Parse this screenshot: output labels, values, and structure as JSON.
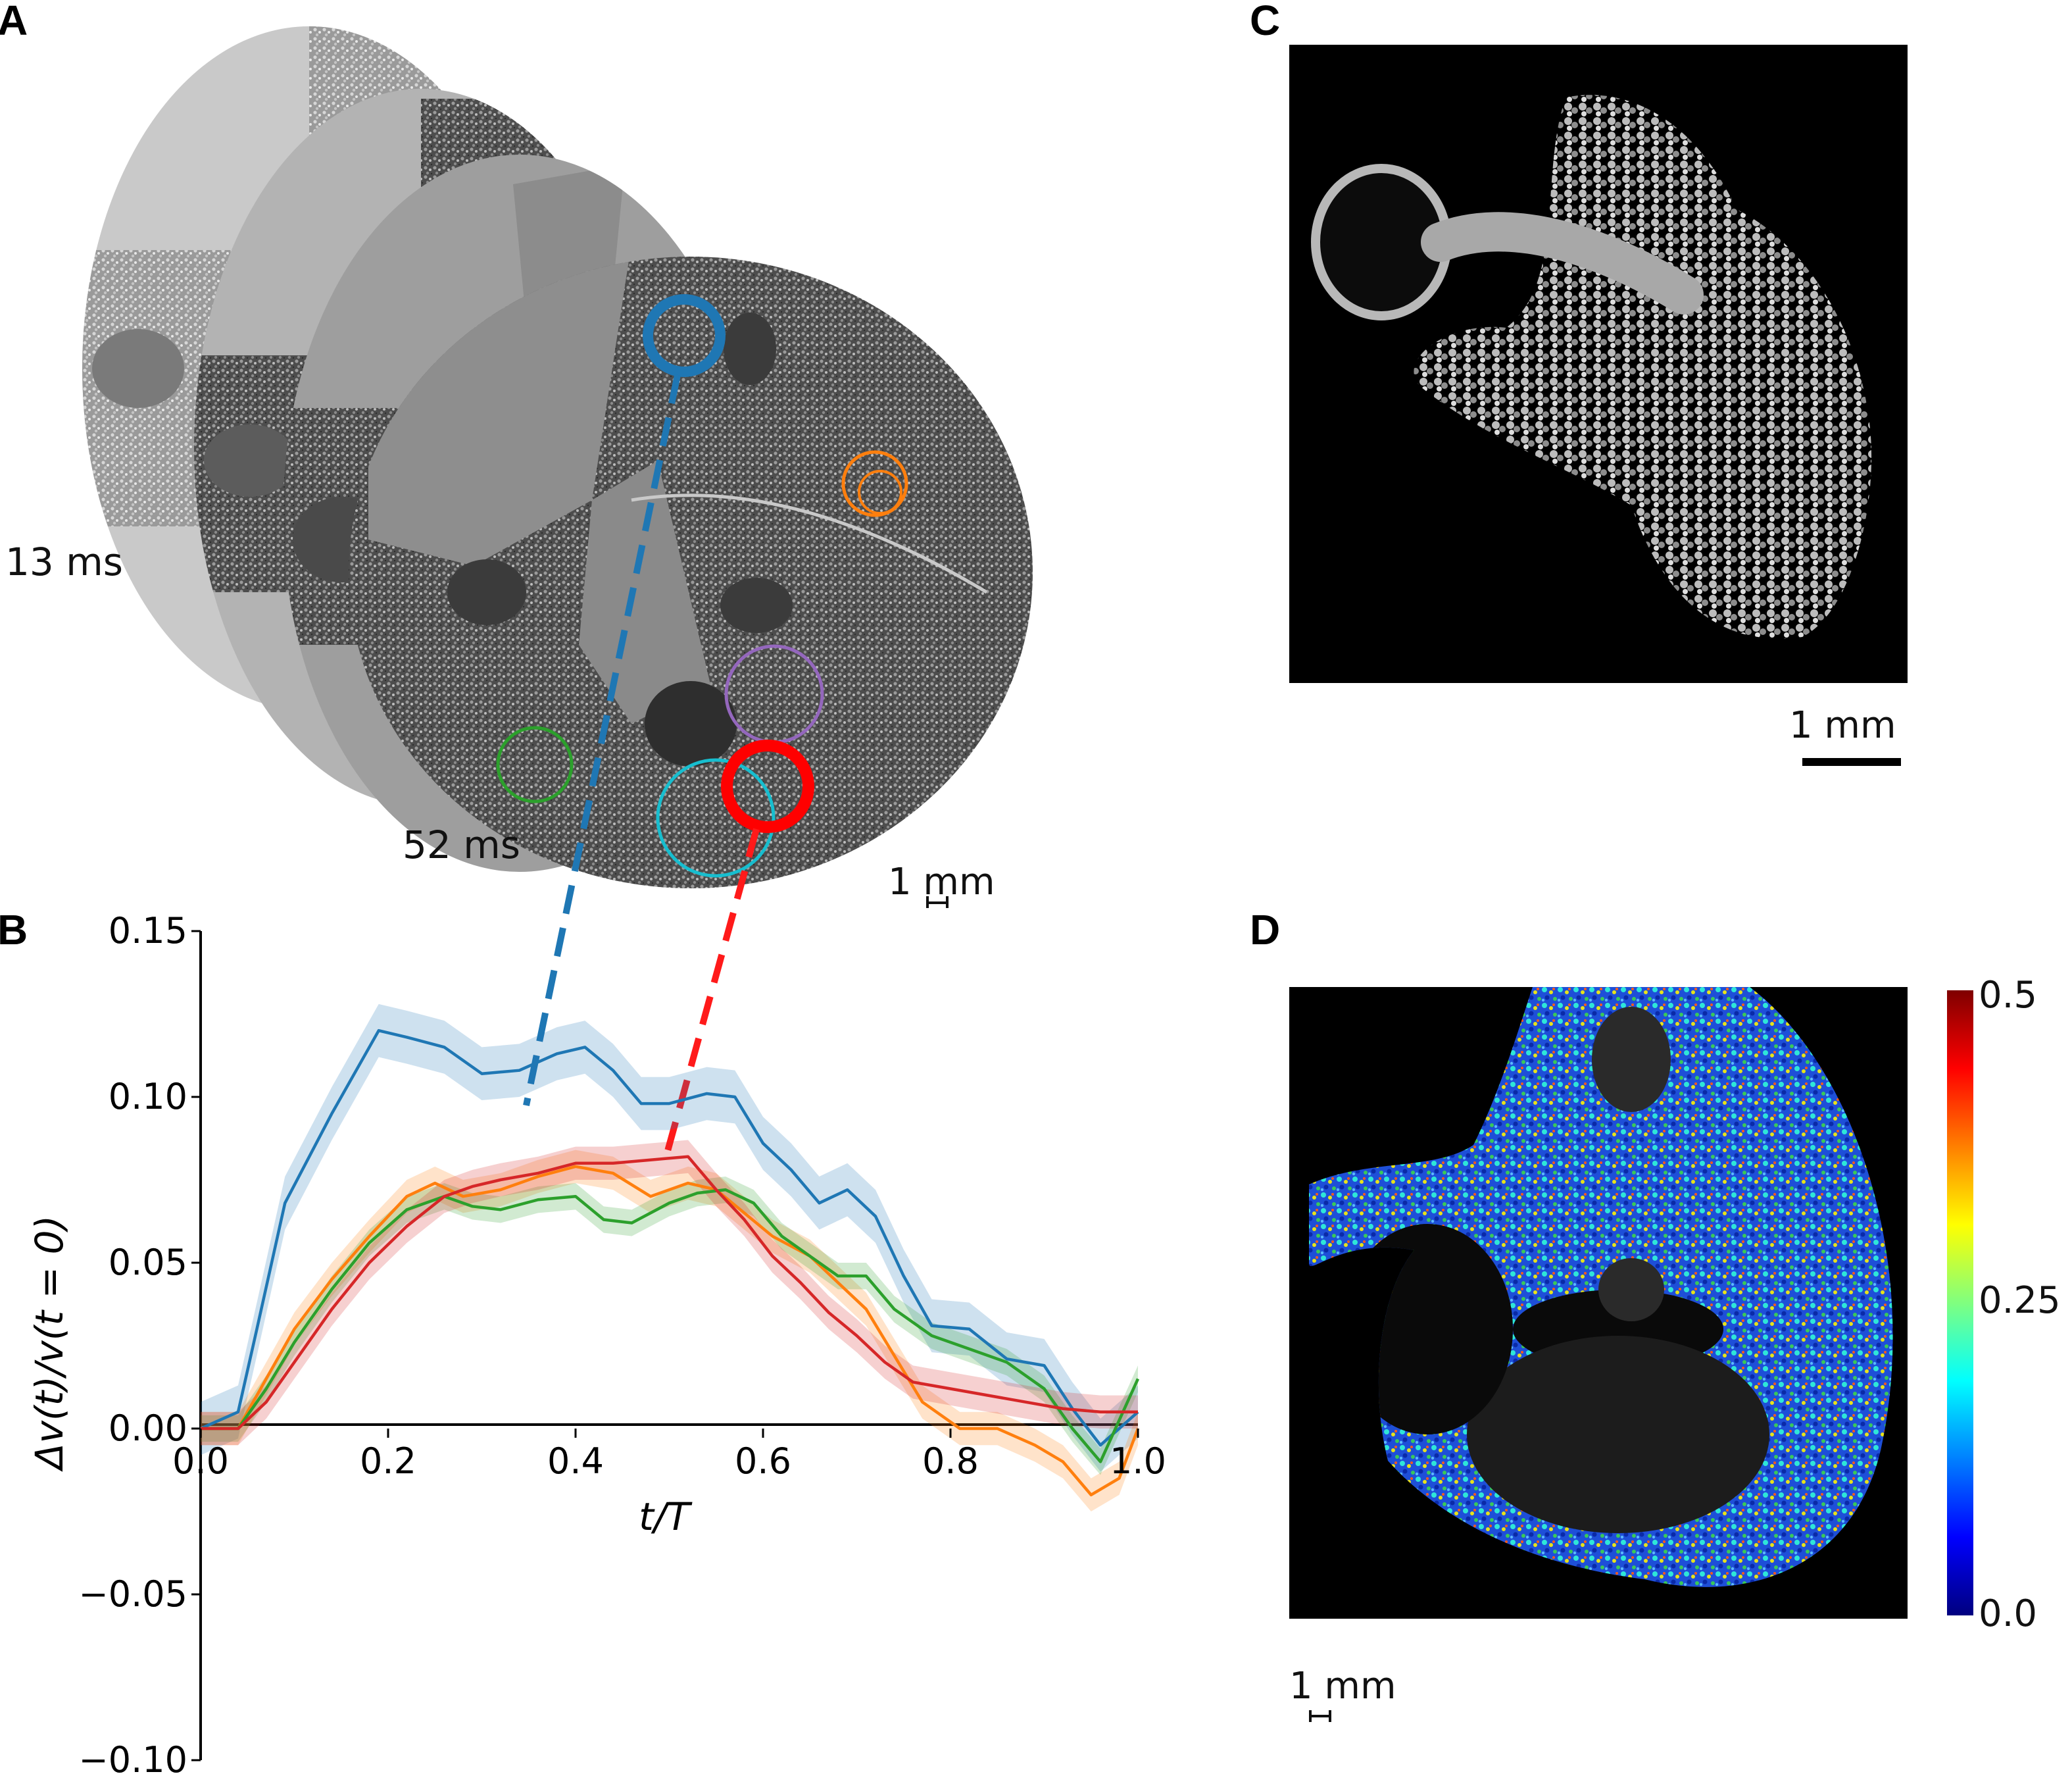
{
  "panels": {
    "a": {
      "letter": "A",
      "frame_first": "13 ms",
      "frame_last": "52 ms",
      "scale_bar": "1 mm"
    },
    "b": {
      "letter": "B"
    },
    "c": {
      "letter": "C",
      "scale_bar": "1 mm"
    },
    "d": {
      "letter": "D",
      "scale_bar": "1 mm",
      "colorbar": {
        "max": "0.5",
        "mid": "0.25",
        "min": "0.0",
        "colormap": "jet"
      }
    }
  },
  "roi_colors": {
    "blue": "#1f77b4",
    "orange": "#ff7f0e",
    "green": "#2ca02c",
    "red": "#d62728",
    "purple": "#9467bd",
    "cyan": "#17becf"
  },
  "chart_data": {
    "type": "line",
    "title": "",
    "xlabel": "t/T",
    "ylabel": "Δv(t)/v(t = 0)",
    "xlim": [
      0.0,
      1.0
    ],
    "ylim": [
      -0.1,
      0.15
    ],
    "x_ticks": [
      "0.0",
      "0.2",
      "0.4",
      "0.6",
      "0.8",
      "1.0"
    ],
    "y_ticks": [
      "0.15",
      "0.10",
      "0.05",
      "0.00",
      "−0.05",
      "−0.10"
    ],
    "grid": false,
    "series": [
      {
        "color": "#1f77b4",
        "band": 0.008,
        "x": [
          0.0,
          0.04,
          0.06,
          0.09,
          0.14,
          0.19,
          0.22,
          0.26,
          0.3,
          0.34,
          0.38,
          0.41,
          0.44,
          0.47,
          0.5,
          0.54,
          0.57,
          0.6,
          0.63,
          0.66,
          0.69,
          0.72,
          0.75,
          0.78,
          0.82,
          0.86,
          0.9,
          0.93,
          0.96,
          1.0
        ],
        "y": [
          0.0,
          0.005,
          0.03,
          0.068,
          0.095,
          0.12,
          0.118,
          0.115,
          0.107,
          0.108,
          0.113,
          0.115,
          0.108,
          0.098,
          0.098,
          0.101,
          0.1,
          0.086,
          0.078,
          0.068,
          0.072,
          0.064,
          0.046,
          0.031,
          0.03,
          0.021,
          0.019,
          0.006,
          -0.005,
          0.005
        ]
      },
      {
        "color": "#ff7f0e",
        "band": 0.005,
        "x": [
          0.0,
          0.04,
          0.07,
          0.1,
          0.14,
          0.18,
          0.22,
          0.25,
          0.28,
          0.32,
          0.36,
          0.4,
          0.44,
          0.48,
          0.52,
          0.55,
          0.58,
          0.61,
          0.65,
          0.68,
          0.71,
          0.74,
          0.77,
          0.81,
          0.85,
          0.89,
          0.92,
          0.95,
          0.98,
          1.0
        ],
        "y": [
          0.0,
          0.0,
          0.015,
          0.03,
          0.045,
          0.058,
          0.07,
          0.074,
          0.07,
          0.072,
          0.076,
          0.079,
          0.077,
          0.07,
          0.074,
          0.072,
          0.065,
          0.058,
          0.052,
          0.044,
          0.036,
          0.022,
          0.008,
          0.0,
          0.0,
          -0.005,
          -0.01,
          -0.02,
          -0.015,
          0.0
        ]
      },
      {
        "color": "#2ca02c",
        "band": 0.004,
        "x": [
          0.0,
          0.04,
          0.07,
          0.1,
          0.14,
          0.18,
          0.22,
          0.26,
          0.29,
          0.32,
          0.36,
          0.4,
          0.43,
          0.46,
          0.5,
          0.53,
          0.56,
          0.59,
          0.62,
          0.65,
          0.68,
          0.71,
          0.74,
          0.78,
          0.82,
          0.86,
          0.9,
          0.93,
          0.96,
          1.0
        ],
        "y": [
          0.0,
          0.0,
          0.012,
          0.026,
          0.042,
          0.056,
          0.066,
          0.07,
          0.067,
          0.066,
          0.069,
          0.07,
          0.063,
          0.062,
          0.068,
          0.071,
          0.072,
          0.068,
          0.058,
          0.052,
          0.046,
          0.046,
          0.036,
          0.028,
          0.024,
          0.02,
          0.012,
          0.0,
          -0.01,
          0.015
        ]
      },
      {
        "color": "#d62728",
        "band": 0.005,
        "x": [
          0.0,
          0.04,
          0.07,
          0.1,
          0.14,
          0.18,
          0.22,
          0.26,
          0.29,
          0.32,
          0.36,
          0.4,
          0.44,
          0.48,
          0.52,
          0.55,
          0.58,
          0.61,
          0.64,
          0.67,
          0.7,
          0.73,
          0.76,
          0.8,
          0.84,
          0.88,
          0.92,
          0.96,
          1.0
        ],
        "y": [
          0.0,
          0.0,
          0.008,
          0.02,
          0.036,
          0.05,
          0.061,
          0.07,
          0.073,
          0.075,
          0.077,
          0.08,
          0.08,
          0.081,
          0.082,
          0.072,
          0.063,
          0.052,
          0.044,
          0.035,
          0.028,
          0.02,
          0.014,
          0.012,
          0.01,
          0.008,
          0.006,
          0.005,
          0.005
        ]
      }
    ]
  }
}
